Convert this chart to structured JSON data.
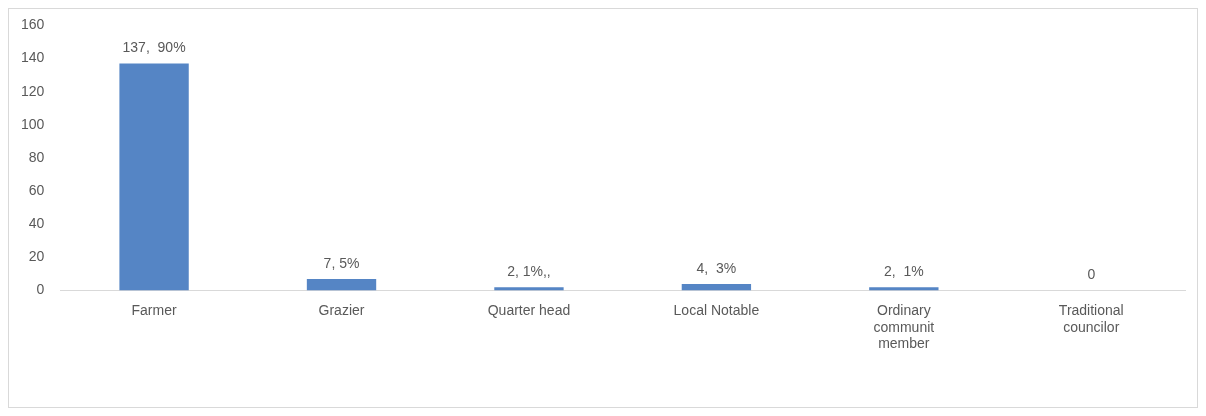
{
  "chart_data": {
    "type": "bar",
    "categories": [
      "Farmer",
      "Grazier",
      "Quarter head",
      "Local Notable",
      "Ordinary communit member",
      "Traditional councilor"
    ],
    "values": [
      137,
      7,
      2,
      4,
      2,
      0
    ],
    "value_labels": [
      "137,  90%",
      "7, 5%",
      "2, 1%,,",
      "4,  3%",
      "2,  1%",
      "0"
    ],
    "color": "#5585c5",
    "ylim": [
      0,
      160
    ],
    "yticks": [
      0,
      20,
      40,
      60,
      80,
      100,
      120,
      140,
      160
    ],
    "grid": false,
    "legend": false
  }
}
